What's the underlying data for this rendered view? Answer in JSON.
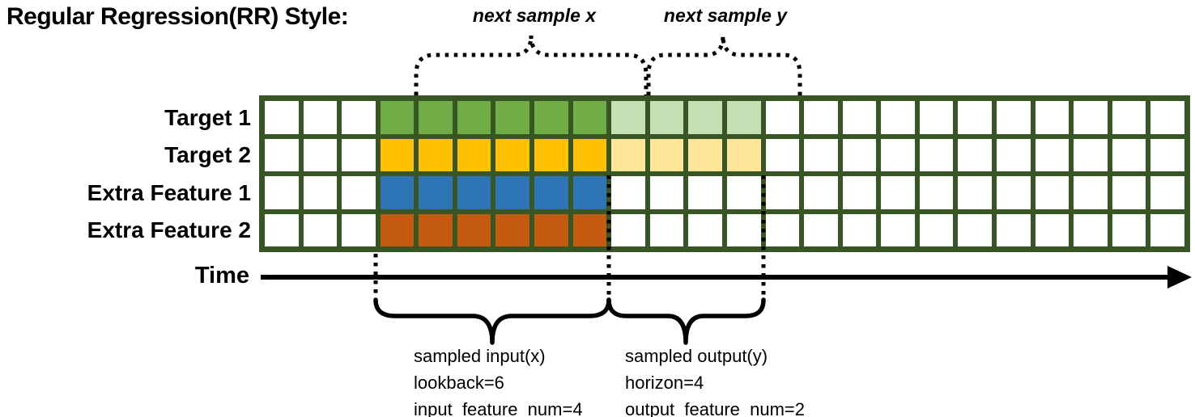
{
  "title": "Regular Regression(RR) Style:",
  "palette": {
    "grid_line": "#375623",
    "empty_cell": "#FFFFFF",
    "annotation": "#000000"
  },
  "grid": {
    "num_columns": 24,
    "num_rows": 4,
    "input_cols": {
      "start": 4,
      "end": 9
    },
    "output_cols": {
      "start": 10,
      "end": 13
    },
    "rows": [
      {
        "label": "Target 1",
        "input_color": "#70AD47",
        "output_color": "#C5E0B4"
      },
      {
        "label": "Target 2",
        "input_color": "#FFC000",
        "output_color": "#FFE699"
      },
      {
        "label": "Extra Feature 1",
        "input_color": "#2E75B6",
        "output_color": null
      },
      {
        "label": "Extra Feature 2",
        "input_color": "#C55A11",
        "output_color": null
      }
    ]
  },
  "braces": {
    "next_sample_x_label": "next sample x",
    "next_sample_y_label": "next sample y"
  },
  "time_axis": {
    "label": "Time"
  },
  "sample_annotations": {
    "input": {
      "line1": "sampled input(x)",
      "line2": "lookback=6",
      "line3": "input_feature_num=4"
    },
    "output": {
      "line1": "sampled output(y)",
      "line2": "horizon=4",
      "line3": "output_feature_num=2"
    }
  }
}
